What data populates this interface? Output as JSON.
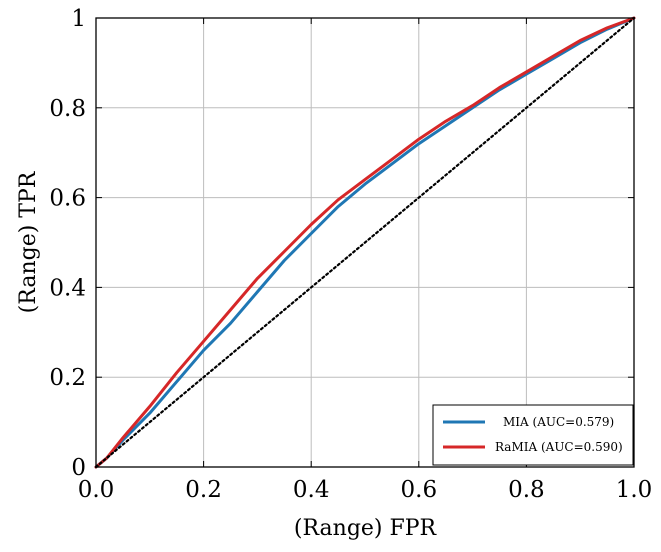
{
  "chart_data": {
    "type": "line",
    "xlabel": "(Range)  FPR",
    "ylabel": "(Range)  TPR",
    "xlim": [
      0,
      1
    ],
    "ylim": [
      0,
      1
    ],
    "xticks": [
      "0.0",
      "0.2",
      "0.4",
      "0.6",
      "0.8",
      "1.0"
    ],
    "yticks": [
      "0",
      "0.2",
      "0.4",
      "0.6",
      "0.8",
      "1"
    ],
    "grid": true,
    "legend_position": "bottom-right",
    "series": [
      {
        "name": "MIA  (AUC=0.579)",
        "color": "#1f77b4",
        "x": [
          0,
          0.02,
          0.05,
          0.1,
          0.15,
          0.2,
          0.25,
          0.3,
          0.35,
          0.4,
          0.45,
          0.5,
          0.55,
          0.6,
          0.65,
          0.7,
          0.75,
          0.8,
          0.85,
          0.9,
          0.95,
          1.0
        ],
        "y": [
          0,
          0.02,
          0.06,
          0.12,
          0.19,
          0.26,
          0.32,
          0.39,
          0.46,
          0.52,
          0.58,
          0.63,
          0.675,
          0.72,
          0.76,
          0.8,
          0.84,
          0.875,
          0.91,
          0.945,
          0.975,
          1.0
        ]
      },
      {
        "name": "RaMIA  (AUC=0.590)",
        "color": "#d62728",
        "x": [
          0,
          0.02,
          0.05,
          0.1,
          0.15,
          0.2,
          0.25,
          0.3,
          0.35,
          0.4,
          0.45,
          0.5,
          0.55,
          0.6,
          0.65,
          0.7,
          0.75,
          0.8,
          0.85,
          0.9,
          0.95,
          1.0
        ],
        "y": [
          0,
          0.02,
          0.065,
          0.135,
          0.21,
          0.28,
          0.35,
          0.42,
          0.48,
          0.54,
          0.595,
          0.64,
          0.685,
          0.73,
          0.77,
          0.805,
          0.845,
          0.88,
          0.915,
          0.95,
          0.978,
          1.0
        ]
      },
      {
        "name": "",
        "color": "#000000",
        "style": "dotted",
        "x": [
          0,
          1
        ],
        "y": [
          0,
          1
        ]
      }
    ]
  }
}
